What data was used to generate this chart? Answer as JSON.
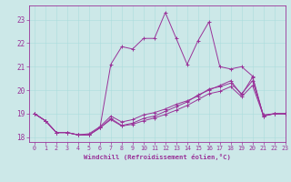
{
  "xlabel": "Windchill (Refroidissement éolien,°C)",
  "bg_color": "#cce8e8",
  "line_color": "#993399",
  "xlim": [
    -0.5,
    23
  ],
  "ylim": [
    17.8,
    23.6
  ],
  "yticks": [
    18,
    19,
    20,
    21,
    22,
    23
  ],
  "xticks": [
    0,
    1,
    2,
    3,
    4,
    5,
    6,
    7,
    8,
    9,
    10,
    11,
    12,
    13,
    14,
    15,
    16,
    17,
    18,
    19,
    20,
    21,
    22,
    23
  ],
  "series1": {
    "x": [
      0,
      1,
      2,
      3,
      4,
      5,
      6,
      7,
      8,
      9,
      10,
      11,
      12,
      13,
      14,
      15,
      16,
      17,
      18,
      19,
      20,
      21,
      22,
      23
    ],
    "y": [
      19.0,
      18.7,
      18.2,
      18.2,
      18.1,
      18.1,
      18.4,
      21.1,
      21.85,
      21.75,
      22.2,
      22.2,
      23.3,
      22.2,
      21.1,
      22.1,
      22.9,
      21.0,
      20.9,
      21.0,
      20.6,
      18.9,
      19.0,
      19.0
    ]
  },
  "series2": {
    "x": [
      0,
      1,
      2,
      3,
      4,
      5,
      6,
      7,
      8,
      9,
      10,
      11,
      12,
      13,
      14,
      15,
      16,
      17,
      18,
      19,
      20,
      21,
      22,
      23
    ],
    "y": [
      19.0,
      18.7,
      18.2,
      18.2,
      18.1,
      18.1,
      18.4,
      18.8,
      18.5,
      18.6,
      18.8,
      18.9,
      19.1,
      19.3,
      19.5,
      19.8,
      20.0,
      20.2,
      20.4,
      19.8,
      20.55,
      18.9,
      19.0,
      19.0
    ]
  },
  "series3": {
    "x": [
      0,
      1,
      2,
      3,
      4,
      5,
      6,
      7,
      8,
      9,
      10,
      11,
      12,
      13,
      14,
      15,
      16,
      17,
      18,
      19,
      20,
      21,
      22,
      23
    ],
    "y": [
      19.0,
      18.7,
      18.2,
      18.2,
      18.1,
      18.15,
      18.45,
      18.9,
      18.65,
      18.75,
      18.95,
      19.05,
      19.2,
      19.4,
      19.55,
      19.75,
      20.05,
      20.15,
      20.3,
      19.85,
      20.4,
      18.95,
      19.0,
      19.0
    ]
  },
  "series4": {
    "x": [
      0,
      1,
      2,
      3,
      4,
      5,
      6,
      7,
      8,
      9,
      10,
      11,
      12,
      13,
      14,
      15,
      16,
      17,
      18,
      19,
      20,
      21,
      22,
      23
    ],
    "y": [
      19.0,
      18.7,
      18.2,
      18.2,
      18.1,
      18.1,
      18.4,
      18.75,
      18.48,
      18.55,
      18.7,
      18.82,
      18.97,
      19.15,
      19.35,
      19.6,
      19.85,
      19.95,
      20.15,
      19.72,
      20.2,
      18.92,
      19.0,
      19.0
    ]
  }
}
